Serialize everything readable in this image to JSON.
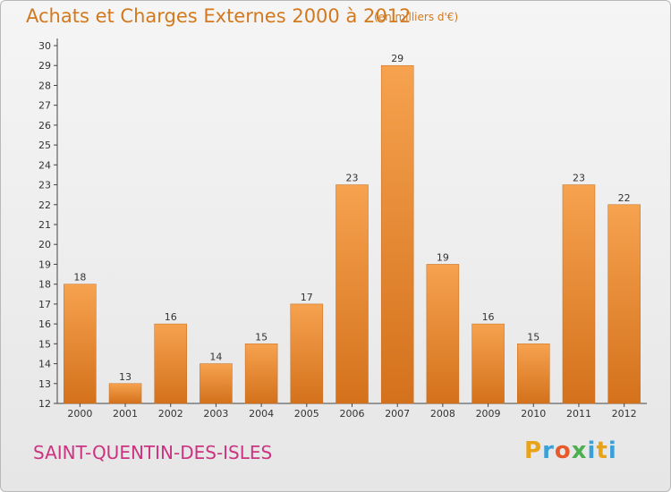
{
  "header": {
    "title": "Achats et Charges Externes 2000 à 2012",
    "unit": "(en milliers d'€)"
  },
  "footer": {
    "town": "SAINT-QUENTIN-DES-ISLES",
    "logo_letters": [
      "P",
      "r",
      "o",
      "x",
      "i",
      "t",
      "i"
    ]
  },
  "colors": {
    "title": "#d2791f",
    "town": "#cc3380",
    "bar_light": "#f6a24f",
    "bar_dark": "#d4711c",
    "logo": [
      "#e8a317",
      "#3aa0d8",
      "#e85a2a",
      "#4caf50",
      "#3aa0d8",
      "#e8a317",
      "#3aa0d8"
    ]
  },
  "chart_data": {
    "type": "bar",
    "title": "Achats et Charges Externes 2000 à 2012",
    "subtitle": "(en milliers d'€)",
    "xlabel": "",
    "ylabel": "",
    "categories": [
      "2000",
      "2001",
      "2002",
      "2003",
      "2004",
      "2005",
      "2006",
      "2007",
      "2008",
      "2009",
      "2010",
      "2011",
      "2012"
    ],
    "values": [
      18,
      13,
      16,
      14,
      15,
      17,
      23,
      29,
      19,
      16,
      15,
      23,
      22
    ],
    "ylim": [
      12,
      30
    ],
    "yticks": [
      12,
      13,
      14,
      15,
      16,
      17,
      18,
      19,
      20,
      21,
      22,
      23,
      24,
      25,
      26,
      27,
      28,
      29,
      30
    ],
    "grid": false,
    "legend": "none"
  }
}
